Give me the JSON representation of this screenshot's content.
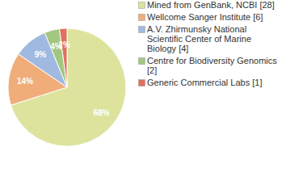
{
  "chart_data": {
    "type": "pie",
    "categories": [
      "Mined from GenBank, NCBI [28]",
      "Wellcome Sanger Institute [6]",
      "A.V. Zhirmunsky National Scientific Center of Marine Biology [4]",
      "Centre for Biodiversity Genomics [2]",
      "Generic Commercial Labs [1]"
    ],
    "values": [
      68,
      14,
      9,
      4,
      2
    ],
    "value_labels": [
      "68%",
      "14%",
      "9%",
      "4%",
      "2%"
    ],
    "colors": [
      "#dde39d",
      "#f0ad7a",
      "#a0b9e0",
      "#a3c77e",
      "#e0705f"
    ],
    "data_labels": true,
    "legend": "right"
  }
}
